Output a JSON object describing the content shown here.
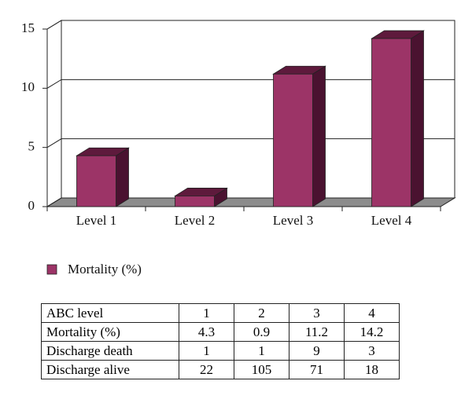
{
  "chart_data": {
    "type": "bar3d",
    "categories": [
      "Level 1",
      "Level 2",
      "Level 3",
      "Level 4"
    ],
    "series": [
      {
        "name": "Mortality (%)",
        "color": "#9c3467",
        "values": [
          4.3,
          0.9,
          11.2,
          14.2
        ]
      }
    ],
    "ylim": [
      0,
      15
    ],
    "yticks": [
      0,
      5,
      10,
      15
    ],
    "grid": true,
    "legend": "bottom-left"
  },
  "table": {
    "rows": [
      [
        "ABC level",
        1,
        2,
        3,
        4
      ],
      [
        "Mortality (%)",
        4.3,
        0.9,
        11.2,
        14.2
      ],
      [
        "Discharge death",
        1,
        1,
        9,
        3
      ],
      [
        "Discharge alive",
        22,
        105,
        71,
        18
      ]
    ]
  }
}
